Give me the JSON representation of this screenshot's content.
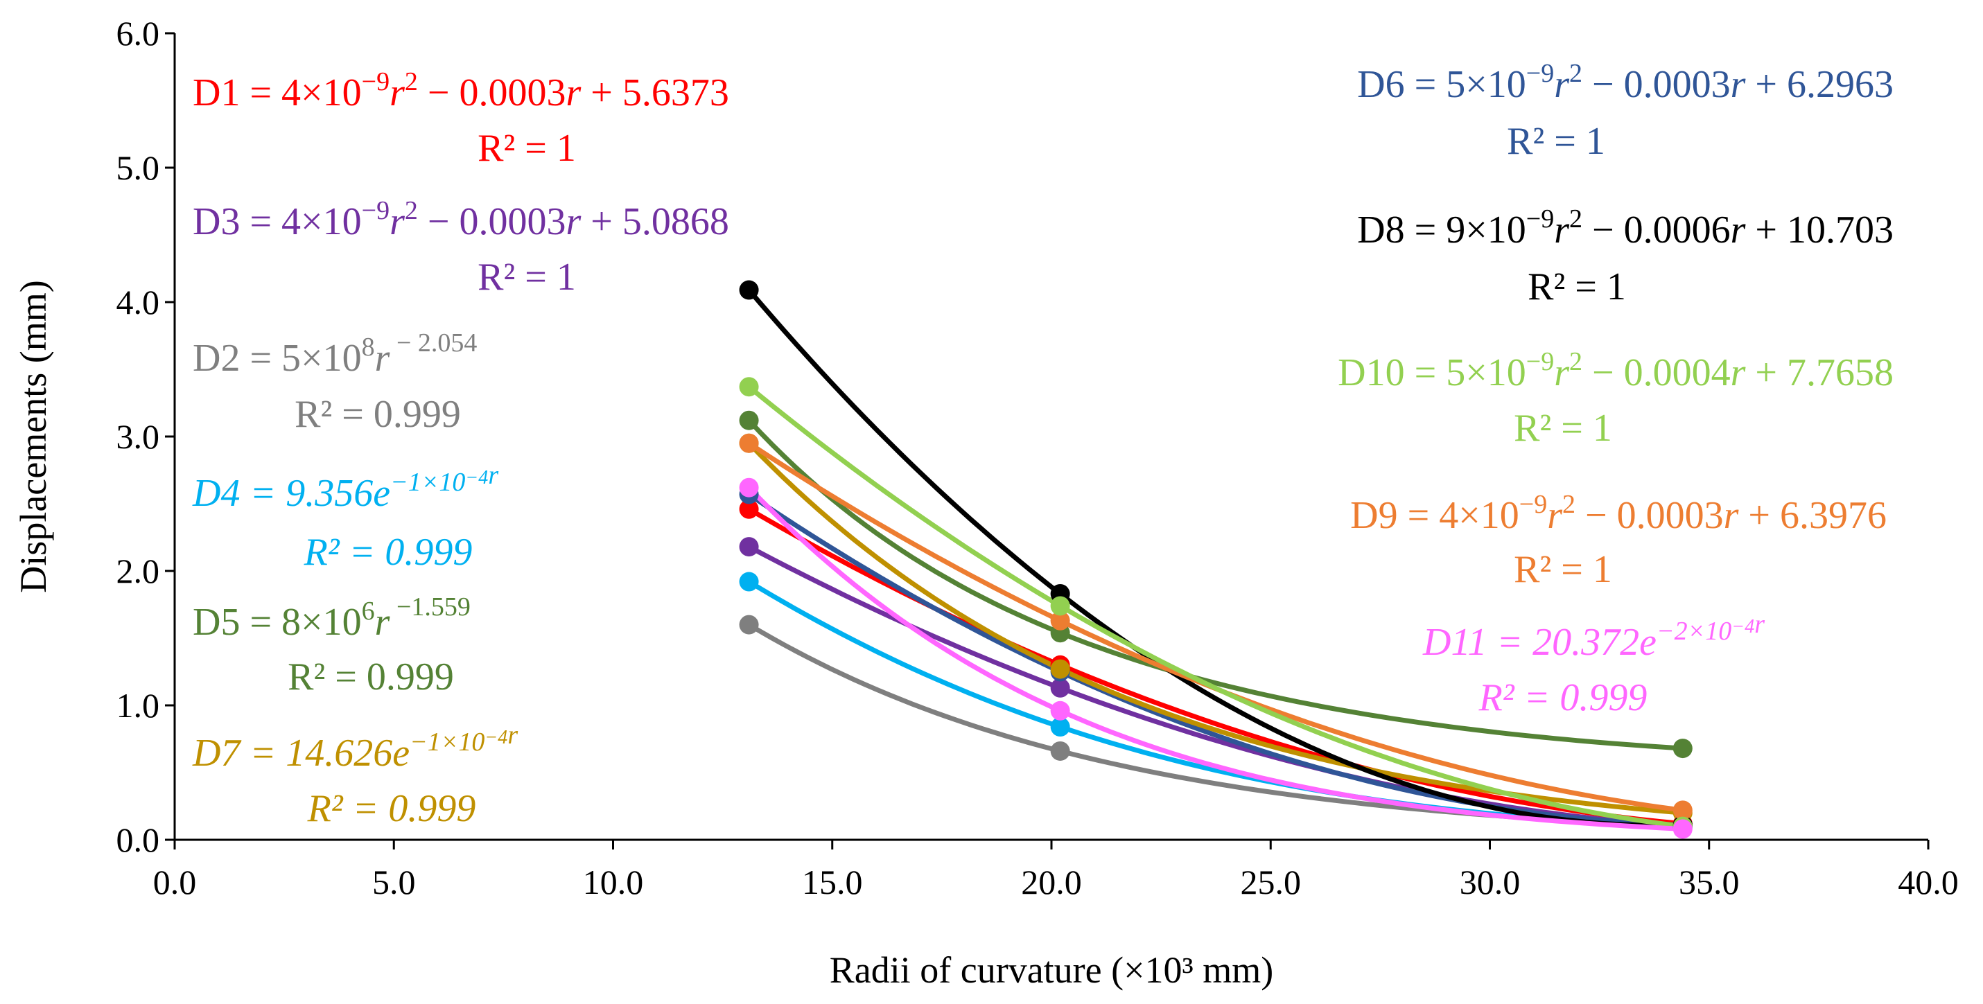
{
  "chart_data": {
    "type": "scatter",
    "title": "",
    "xlabel": "Radii of curvature (×10³ mm)",
    "ylabel": "Displacements (mm)",
    "xlim": [
      0,
      40
    ],
    "ylim": [
      0,
      6
    ],
    "x_ticks": [
      "0.0",
      "5.0",
      "10.0",
      "15.0",
      "20.0",
      "25.0",
      "30.0",
      "35.0",
      "40.0"
    ],
    "y_ticks": [
      "0.0",
      "1.0",
      "2.0",
      "3.0",
      "4.0",
      "5.0",
      "6.0"
    ],
    "x": [
      13.1,
      20.2,
      34.4
    ],
    "series": [
      {
        "name": "D1",
        "color": "#ff0000",
        "values": [
          2.46,
          1.3,
          0.12
        ],
        "fit": {
          "type": "poly2",
          "a": 4e-09,
          "b": -0.0003,
          "c": 5.6373
        }
      },
      {
        "name": "D2",
        "color": "#7f7f7f",
        "values": [
          1.6,
          0.66,
          0.1
        ],
        "fit": {
          "type": "power",
          "a": 500000000.0,
          "b": -2.054
        }
      },
      {
        "name": "D3",
        "color": "#7030a0",
        "values": [
          2.18,
          1.13,
          0.1
        ],
        "fit": {
          "type": "poly2",
          "a": 4e-09,
          "b": -0.0003,
          "c": 5.0868
        }
      },
      {
        "name": "D4",
        "color": "#00b0f0",
        "values": [
          1.92,
          0.84,
          0.09
        ],
        "fit": {
          "type": "exp",
          "a": 9.356,
          "b": -0.0001
        }
      },
      {
        "name": "D5",
        "color": "#548235",
        "values": [
          3.12,
          1.54,
          0.68
        ],
        "fit": {
          "type": "power",
          "a": 8000000.0,
          "b": -1.559
        }
      },
      {
        "name": "D6",
        "color": "#2f5597",
        "values": [
          2.57,
          1.25,
          0.11
        ],
        "fit": {
          "type": "poly2",
          "a": 5e-09,
          "b": -0.0003,
          "c": 6.2963
        }
      },
      {
        "name": "D7",
        "color": "#bf9000",
        "values": [
          2.95,
          1.27,
          0.2
        ],
        "fit": {
          "type": "exp",
          "a": 14.626,
          "b": -0.0001
        }
      },
      {
        "name": "D8",
        "color": "#000000",
        "values": [
          4.09,
          1.83,
          0.11
        ],
        "fit": {
          "type": "poly2",
          "a": 9e-09,
          "b": -0.0006,
          "c": 10.703
        }
      },
      {
        "name": "D9",
        "color": "#ed7d31",
        "values": [
          2.95,
          1.63,
          0.22
        ],
        "fit": {
          "type": "poly2",
          "a": 4e-09,
          "b": -0.0003,
          "c": 6.3976
        }
      },
      {
        "name": "D10",
        "color": "#92d050",
        "values": [
          3.37,
          1.74,
          0.1
        ],
        "fit": {
          "type": "poly2",
          "a": 5e-09,
          "b": -0.0004,
          "c": 7.7658
        }
      },
      {
        "name": "D11",
        "color": "#ff66ff",
        "values": [
          2.62,
          0.96,
          0.08
        ],
        "fit": {
          "type": "exp",
          "a": 20.372,
          "b": -0.0002
        }
      }
    ],
    "annotations": {
      "d1": {
        "name": "D1",
        "coef": "4×10",
        "exp": "−9",
        "mid": "r",
        "sq": "2",
        "rest": " − 0.0003",
        "r2var": "r",
        "tail": " + 5.6373",
        "r2": "R² = 1"
      },
      "d3": {
        "name": "D3",
        "coef": "4×10",
        "exp": "−9",
        "mid": "r",
        "sq": "2",
        "rest": " − 0.0003",
        "r2var": "r",
        "tail": " + 5.0868",
        "r2": "R² = 1"
      },
      "d2": {
        "name": "D2",
        "coef": "5×10",
        "exp": "8",
        "mid": "r",
        "pow": " − 2.054",
        "r2": "R² = 0.999"
      },
      "d4": {
        "name": "D4",
        "coef": "9.356e",
        "exp": "−1×10",
        "exp2": "−4",
        "var": "r",
        "r2": "R² = 0.999"
      },
      "d5": {
        "name": "D5",
        "coef": "8×10",
        "exp": "6",
        "mid": "r",
        "pow": " −1.559",
        "r2": "R² = 0.999"
      },
      "d7": {
        "name": "D7",
        "coef": "14.626e",
        "exp": "−1×10",
        "exp2": "−4",
        "var": "r",
        "r2": "R² = 0.999"
      },
      "d6": {
        "name": "D6",
        "coef": "5×10",
        "exp": "−9",
        "mid": "r",
        "sq": "2",
        "rest": " − 0.0003",
        "r2var": "r",
        "tail": " + 6.2963",
        "r2": "R² = 1"
      },
      "d8": {
        "name": "D8",
        "coef": "9×10",
        "exp": "−9",
        "mid": "r",
        "sq": "2",
        "rest": " − 0.0006",
        "r2var": "r",
        "tail": " + 10.703",
        "r2": "R² = 1"
      },
      "d10": {
        "name": "D10",
        "coef": "5×10",
        "exp": "−9",
        "mid": "r",
        "sq": "2",
        "rest": " − 0.0004",
        "r2var": "r",
        "tail": " + 7.7658",
        "r2": "R² = 1"
      },
      "d9": {
        "name": "D9",
        "coef": "4×10",
        "exp": "−9",
        "mid": "r",
        "sq": "2",
        "rest": " − 0.0003",
        "r2var": "r",
        "tail": " + 6.3976",
        "r2": "R² = 1"
      },
      "d11": {
        "name": "D11",
        "coef": "20.372e",
        "exp": "−2×10",
        "exp2": "−4",
        "var": "r",
        "r2": "R² = 0.999"
      }
    }
  }
}
